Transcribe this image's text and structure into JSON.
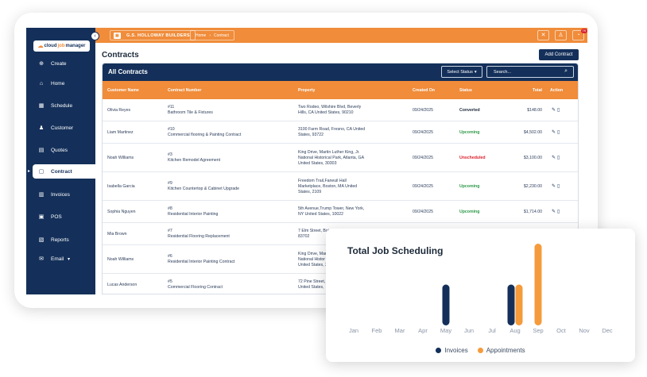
{
  "sidebar": {
    "logo_prefix": "cloud",
    "logo_mid": "job",
    "logo_suffix": "manager",
    "items": [
      {
        "label": "Create",
        "icon": "plus-circle-icon",
        "glyph": "⊕"
      },
      {
        "label": "Home",
        "icon": "home-icon",
        "glyph": "⌂"
      },
      {
        "label": "Schedule",
        "icon": "calendar-icon",
        "glyph": "▦"
      },
      {
        "label": "Customer",
        "icon": "user-icon",
        "glyph": "♟"
      },
      {
        "label": "Quotes",
        "icon": "document-icon",
        "glyph": "▤"
      },
      {
        "label": "Contract",
        "icon": "contract-icon",
        "glyph": "▢"
      },
      {
        "label": "Invoices",
        "icon": "invoice-icon",
        "glyph": "▥"
      },
      {
        "label": "POS",
        "icon": "pos-icon",
        "glyph": "▣"
      },
      {
        "label": "Reports",
        "icon": "reports-icon",
        "glyph": "▧"
      },
      {
        "label": "Email",
        "icon": "email-icon",
        "glyph": "✉"
      }
    ],
    "email_caret": "▾",
    "active_index": 5
  },
  "topbar": {
    "company": "G.S. HOLLOWAY BUILDERS",
    "crumb_home": "Home",
    "crumb_sep": "›",
    "crumb_current": "Contract",
    "notification_count": "79"
  },
  "page": {
    "title": "Contracts",
    "add_button": "Add Contract"
  },
  "table": {
    "title": "All Contracts",
    "status_select": "Select Status",
    "search_placeholder": "Search...",
    "headers": [
      "Customer Name",
      "Contract Number",
      "Property",
      "Created On",
      "Status",
      "Total",
      "Action"
    ],
    "rows": [
      {
        "customer": "Olivia Reyes",
        "num": "#11",
        "contract": "Bathroom Tile & Fixtures",
        "property": [
          "Two Rodeo, Wilshire Blvd, Beverly",
          "Hills, CA United States, 90210"
        ],
        "created": "09/24/2025",
        "status": "Converted",
        "status_class": "converted",
        "total": "$148.00"
      },
      {
        "customer": "Liam Martinez",
        "num": "#10",
        "contract": "Commercial flooring & Painting Contract",
        "property": [
          "3100 Farm Road, Fresno, CA United",
          "States, 93722"
        ],
        "created": "09/24/2025",
        "status": "Upcoming",
        "status_class": "upcoming",
        "total": "$4,502.00"
      },
      {
        "customer": "Noah Williams",
        "num": "#3",
        "contract": "Kitchen Remodel Agreement",
        "property": [
          "King Drive, Martin Luther King, Jr.",
          "National Historical Park, Atlanta, GA",
          "United States, 30303"
        ],
        "created": "09/24/2025",
        "status": "Unscheduled",
        "status_class": "unscheduled",
        "total": "$3,100.00"
      },
      {
        "customer": "Isabella Garcia",
        "num": "#9",
        "contract": "Kitchen Countertop & Cabinet Upgrade",
        "property": [
          "Freedom Trail,Faneuil Hall",
          "Marketplace, Boston, MA United",
          "States, 2109"
        ],
        "created": "09/24/2025",
        "status": "Upcoming",
        "status_class": "upcoming",
        "total": "$2,230.00"
      },
      {
        "customer": "Sophia Nguyen",
        "num": "#8",
        "contract": "Residential Interior Painting",
        "property": [
          "5th Avenue,Trump Tower, New York,",
          "NY United States, 10022"
        ],
        "created": "09/24/2025",
        "status": "Upcoming",
        "status_class": "upcoming",
        "total": "$1,714.00"
      },
      {
        "customer": "Mia Brown",
        "num": "#7",
        "contract": "Residential Flooring Replacement",
        "property": [
          "7 Elm Street, Bois",
          "83702"
        ],
        "created": "",
        "status": "",
        "status_class": "",
        "total": ""
      },
      {
        "customer": "Noah Williams",
        "num": "#6",
        "contract": "Residential Interior Painting Contract",
        "property": [
          "King Drive, Mart",
          "National Histor",
          "United States, 3"
        ],
        "created": "",
        "status": "",
        "status_class": "",
        "total": ""
      },
      {
        "customer": "Lucas Anderson",
        "num": "#5",
        "contract": "Commercial Flooring Contract",
        "property": [
          "72 Pine Street,",
          "United States,"
        ],
        "created": "",
        "status": "",
        "status_class": "",
        "total": ""
      }
    ],
    "action_glyphs": "✎🗑"
  },
  "chart_data": {
    "type": "bar",
    "title": "Total Job Scheduling",
    "categories": [
      "Jan",
      "Feb",
      "Mar",
      "Apr",
      "May",
      "Jun",
      "Jul",
      "Aug",
      "Sep",
      "Oct",
      "Nov",
      "Dec"
    ],
    "series": [
      {
        "name": "Invoices",
        "color": "#14305a",
        "values": [
          0,
          0,
          0,
          0,
          1,
          0,
          0,
          1,
          0,
          0,
          0,
          0
        ]
      },
      {
        "name": "Appointments",
        "color": "#f59b3c",
        "values": [
          0,
          0,
          0,
          0,
          0,
          0,
          0,
          1,
          2,
          0,
          0,
          0
        ]
      }
    ],
    "ylim": [
      0,
      2
    ],
    "grid": false,
    "legend_position": "bottom"
  }
}
